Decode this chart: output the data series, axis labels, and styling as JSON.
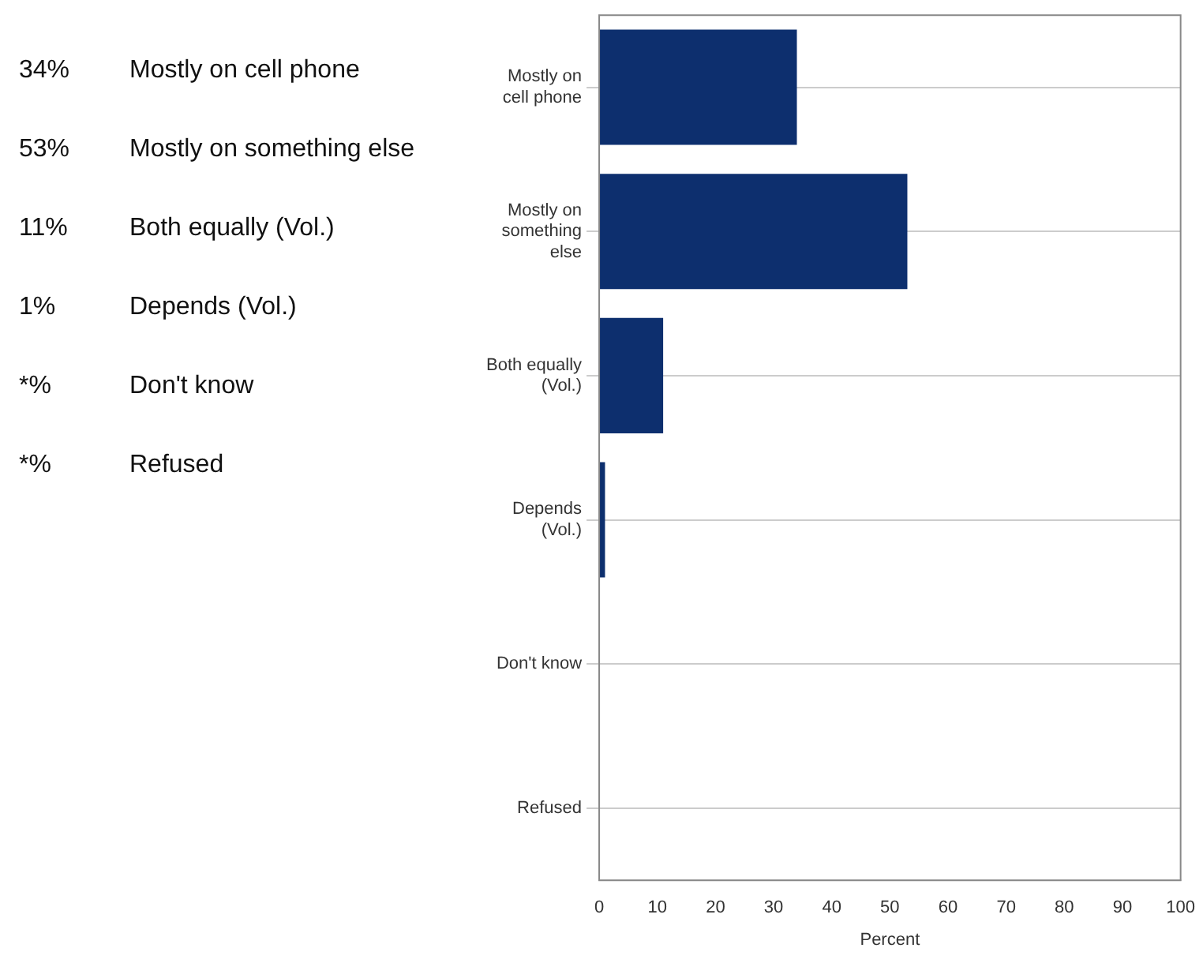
{
  "chart_data": [
    {
      "type": "other",
      "annotations": [
        "34%",
        "Mostly on cell phone",
        "53%",
        "Mostly on something else",
        "11%",
        "Both equally (Vol.)",
        "1%",
        "Depends (Vol.)",
        "*%",
        "Don't know",
        "*%",
        "Refused"
      ]
    },
    {
      "type": "bar",
      "orientation": "horizontal",
      "categories": [
        "Mostly on cell phone",
        "Mostly on something else",
        "Both equally (Vol.)",
        "Depends (Vol.)",
        "Don't know",
        "Refused"
      ],
      "values": [
        34,
        53,
        11,
        1,
        0,
        0
      ],
      "color": "#0d2f6e",
      "xlim": [
        0,
        100
      ],
      "xticks": [
        0,
        10,
        20,
        30,
        40,
        50,
        60,
        70,
        80,
        90,
        100
      ],
      "xlabel": "Percent",
      "grid": "y"
    }
  ]
}
